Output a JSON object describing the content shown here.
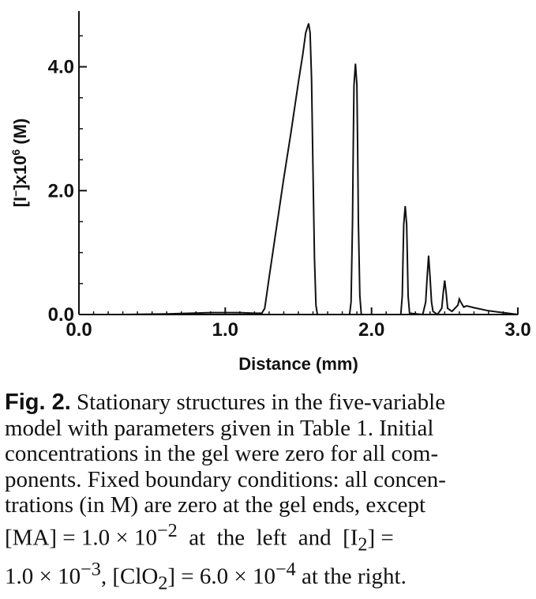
{
  "chart_data": {
    "type": "line",
    "xlabel": "Distance (mm)",
    "ylabel_parts": {
      "a": "[I",
      "b": "−",
      "c": "]x10",
      "d": "6",
      "e": " (M)"
    },
    "xlim": [
      0.0,
      3.0
    ],
    "ylim": [
      0.0,
      4.9
    ],
    "x_ticks": [
      {
        "value": 0.0,
        "label": "0.0"
      },
      {
        "value": 1.0,
        "label": "1.0"
      },
      {
        "value": 2.0,
        "label": "2.0"
      },
      {
        "value": 3.0,
        "label": "3.0"
      }
    ],
    "y_ticks": [
      {
        "value": 0.0,
        "label": "0.0"
      },
      {
        "value": 2.0,
        "label": "2.0"
      },
      {
        "value": 4.0,
        "label": "4.0"
      }
    ],
    "grid": false,
    "series": [
      {
        "x": [
          0.0,
          0.3,
          0.6,
          0.9,
          1.1,
          1.2,
          1.25,
          1.27,
          1.3,
          1.35,
          1.4,
          1.45,
          1.5,
          1.53,
          1.55,
          1.57,
          1.58,
          1.59,
          1.6,
          1.61,
          1.62,
          1.63,
          1.7,
          1.8,
          1.85,
          1.86,
          1.87,
          1.875,
          1.88,
          1.89,
          1.9,
          1.905,
          1.91,
          1.92,
          1.93,
          1.95,
          2.05,
          2.2,
          2.21,
          2.215,
          2.22,
          2.23,
          2.24,
          2.245,
          2.25,
          2.26,
          2.35,
          2.37,
          2.38,
          2.39,
          2.4,
          2.41,
          2.42,
          2.45,
          2.48,
          2.49,
          2.5,
          2.51,
          2.52,
          2.55,
          2.59,
          2.6,
          2.61,
          2.63,
          2.65,
          2.7,
          2.8,
          2.9,
          3.0
        ],
        "y": [
          0.0,
          0.0,
          0.01,
          0.03,
          0.03,
          0.02,
          0.02,
          0.1,
          0.6,
          1.4,
          2.2,
          2.95,
          3.75,
          4.2,
          4.55,
          4.7,
          4.55,
          3.8,
          2.3,
          0.9,
          0.15,
          0.0,
          0.0,
          0.0,
          0.0,
          0.2,
          1.5,
          2.7,
          3.7,
          4.05,
          3.7,
          2.7,
          1.5,
          0.3,
          0.0,
          0.0,
          0.0,
          0.0,
          0.3,
          0.9,
          1.45,
          1.75,
          1.45,
          0.9,
          0.3,
          0.02,
          0.0,
          0.2,
          0.6,
          0.95,
          0.6,
          0.2,
          0.05,
          0.0,
          0.1,
          0.35,
          0.55,
          0.35,
          0.1,
          0.05,
          0.15,
          0.25,
          0.2,
          0.12,
          0.14,
          0.11,
          0.06,
          0.03,
          0.0
        ]
      }
    ]
  },
  "caption": {
    "label": "Fig. 2.",
    "lines": [
      " Stationary structures in the five-variable",
      "model with parameters given in Table 1. Initial",
      "concentrations in the gel were zero for all com-",
      "ponents. Fixed boundary conditions: all concen-",
      "trations (in M) are zero at the gel ends, except"
    ],
    "line6": {
      "a": "[MA] = 1.0 × 10",
      "b": "−2",
      "c": "  at  the  left  and  [I",
      "d": "2",
      "e": "] ="
    },
    "line7": {
      "a": "1.0 × 10",
      "b": "−3",
      "c": ", [ClO",
      "d": "2",
      "e": "] = 6.0 × 10",
      "f": "−4",
      "g": " at the right."
    }
  }
}
